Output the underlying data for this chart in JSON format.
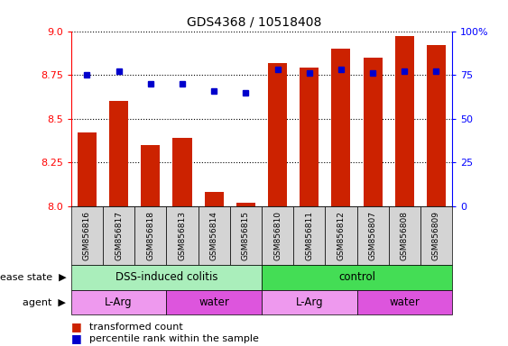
{
  "title": "GDS4368 / 10518408",
  "samples": [
    "GSM856816",
    "GSM856817",
    "GSM856818",
    "GSM856813",
    "GSM856814",
    "GSM856815",
    "GSM856810",
    "GSM856811",
    "GSM856812",
    "GSM856807",
    "GSM856808",
    "GSM856809"
  ],
  "transformed_count": [
    8.42,
    8.6,
    8.35,
    8.39,
    8.08,
    8.02,
    8.82,
    8.79,
    8.9,
    8.85,
    8.97,
    8.92
  ],
  "percentile_rank": [
    75,
    77,
    70,
    70,
    66,
    65,
    78,
    76,
    78,
    76,
    77,
    77
  ],
  "ylim_left": [
    8.0,
    9.0
  ],
  "ylim_right": [
    0,
    100
  ],
  "yticks_left": [
    8.0,
    8.25,
    8.5,
    8.75,
    9.0
  ],
  "yticks_right": [
    0,
    25,
    50,
    75,
    100
  ],
  "bar_color": "#cc2200",
  "dot_color": "#0000cc",
  "background_color": "#ffffff",
  "disease_state_groups": [
    {
      "label": "DSS-induced colitis",
      "start": 0,
      "end": 6,
      "color": "#aaeebb"
    },
    {
      "label": "control",
      "start": 6,
      "end": 12,
      "color": "#44dd55"
    }
  ],
  "agent_groups": [
    {
      "label": "L-Arg",
      "start": 0,
      "end": 3,
      "color": "#ee99ee"
    },
    {
      "label": "water",
      "start": 3,
      "end": 6,
      "color": "#dd55dd"
    },
    {
      "label": "L-Arg",
      "start": 6,
      "end": 9,
      "color": "#ee99ee"
    },
    {
      "label": "water",
      "start": 9,
      "end": 12,
      "color": "#dd55dd"
    }
  ]
}
